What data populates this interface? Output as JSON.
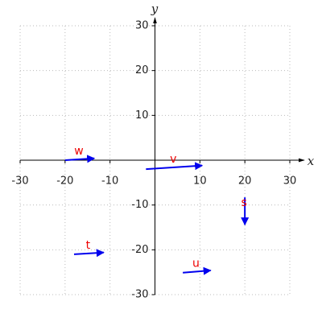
{
  "chart_data": {
    "type": "vector",
    "xlabel": "x",
    "ylabel": "y",
    "xlim": [
      -30,
      30
    ],
    "ylim": [
      -30,
      30
    ],
    "xticks": [
      -30,
      -20,
      -10,
      10,
      20,
      30
    ],
    "yticks": [
      -30,
      -20,
      -10,
      10,
      20,
      30
    ],
    "grid": true,
    "color": "#0000ee",
    "label_color": "#ee0000",
    "series": [
      {
        "name": "w",
        "x": [
          -20,
          -13.5
        ],
        "y": [
          0,
          0.4
        ]
      },
      {
        "name": "v",
        "x": [
          -2,
          10.5
        ],
        "y": [
          -2,
          -1.2
        ]
      },
      {
        "name": "s",
        "x": [
          20,
          20
        ],
        "y": [
          -8.3,
          -14.4
        ]
      },
      {
        "name": "t",
        "x": [
          -18,
          -11.4
        ],
        "y": [
          -21,
          -20.6
        ]
      },
      {
        "name": "u",
        "x": [
          6.2,
          12.4
        ],
        "y": [
          -25.1,
          -24.6
        ]
      }
    ]
  }
}
